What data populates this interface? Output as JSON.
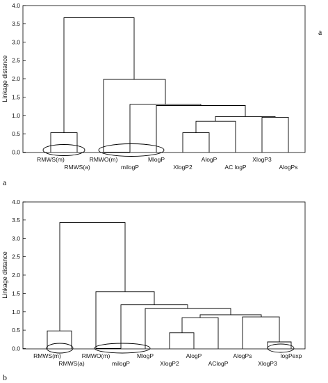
{
  "panel_letters": {
    "a_right": "a",
    "a_left": "a",
    "b_left": "b"
  },
  "chart_data": [
    {
      "type": "dendrogram",
      "panel": "a",
      "ylabel": "Linkage distance",
      "ylim": [
        0,
        4.0
      ],
      "yticks": [
        "0.0",
        "0.5",
        "1.0",
        "1.5",
        "2.0",
        "2.5",
        "3.0",
        "3.5",
        "4.0"
      ],
      "leaves": [
        {
          "label": "RMWS(m)",
          "row": 0
        },
        {
          "label": "RMWS(a)",
          "row": 1
        },
        {
          "label": "RMWO(m)",
          "row": 0
        },
        {
          "label": "milogP",
          "row": 1
        },
        {
          "label": "MlogP",
          "row": 0
        },
        {
          "label": "XlogP2",
          "row": 1
        },
        {
          "label": "AlogP",
          "row": 0
        },
        {
          "label": "AC logP",
          "row": 1
        },
        {
          "label": "XlogP3",
          "row": 0
        },
        {
          "label": "AlogPs",
          "row": 1
        }
      ],
      "merges": [
        {
          "left": 0,
          "right": 1,
          "height": 0.53
        },
        {
          "left": 2,
          "right": 3,
          "height": 0.0
        },
        {
          "left": 5,
          "right": 6,
          "height": 0.53
        },
        {
          "left": 8,
          "right": 9,
          "height": 0.95
        },
        {
          "left": "c3",
          "right": 7,
          "height": 0.84
        },
        {
          "left": "c5",
          "right": "c4",
          "height": 0.97
        },
        {
          "left": "c6",
          "right": 7.5,
          "height": 1.27
        },
        {
          "left": 4,
          "right": "c7",
          "height": 1.3
        },
        {
          "left": "c2",
          "right": "c8",
          "height": 1.98
        },
        {
          "left": "c1",
          "right": "c9",
          "height": 3.65
        }
      ],
      "circled_groups": [
        [
          "RMWS(m)",
          "RMWS(a)"
        ],
        [
          "RMWO(m)",
          "milogP",
          "MlogP"
        ]
      ]
    },
    {
      "type": "dendrogram",
      "panel": "b",
      "ylabel": "Linkage distance",
      "ylim": [
        0,
        4.0
      ],
      "yticks": [
        "0.0",
        "0.5",
        "1.0",
        "1.5",
        "2.0",
        "2.5",
        "3.0",
        "3.5",
        "4.0"
      ],
      "leaves": [
        {
          "label": "RMWS(m)",
          "row": 0
        },
        {
          "label": "RMWS(a)",
          "row": 1
        },
        {
          "label": "RMWO(m)",
          "row": 0
        },
        {
          "label": "milogP",
          "row": 1
        },
        {
          "label": "MlogP",
          "row": 0
        },
        {
          "label": "XlogP2",
          "row": 1
        },
        {
          "label": "AlogP",
          "row": 0
        },
        {
          "label": "AClogP",
          "row": 1
        },
        {
          "label": "AlogPs",
          "row": 0
        },
        {
          "label": "XlogP3",
          "row": 1
        },
        {
          "label": "logPexp",
          "row": 0
        }
      ],
      "merges": [
        {
          "height": 0.48
        },
        {
          "height": 0.0
        },
        {
          "height": 0.43
        },
        {
          "height": 0.18
        },
        {
          "height": 0.84
        },
        {
          "height": 0.86
        },
        {
          "height": 0.92
        },
        {
          "height": 1.09
        },
        {
          "height": 1.21
        },
        {
          "height": 1.56
        },
        {
          "height": 3.43
        }
      ],
      "circled_groups": [
        [
          "RMWS(m)",
          "RMWS(a)"
        ],
        [
          "RMWO(m)",
          "milogP",
          "MlogP"
        ],
        [
          "XlogP3",
          "logPexp"
        ]
      ]
    }
  ]
}
